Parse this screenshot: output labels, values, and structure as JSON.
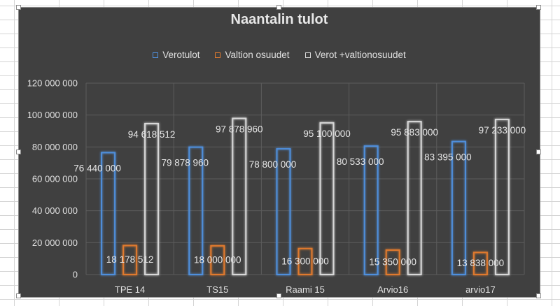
{
  "chart_data": {
    "type": "bar",
    "title": "Naantalin tulot",
    "categories": [
      "TPE 14",
      "TS15",
      "Raami 15",
      "Arvio16",
      "arvio17"
    ],
    "series": [
      {
        "name": "Verotulot",
        "color": "#4f8fdc",
        "values": [
          76440000,
          79878960,
          78800000,
          80533000,
          83395000
        ],
        "labels": [
          "76 440 000",
          "79 878 960",
          "78 800 000",
          "80 533 000",
          "83 395 000"
        ]
      },
      {
        "name": "Valtion osuudet",
        "color": "#e07a2e",
        "values": [
          18178512,
          18000000,
          16300000,
          15350000,
          13838000
        ],
        "labels": [
          "18 178 512",
          "18 000 000",
          "16 300 000",
          "15 350 000",
          "13 838 000"
        ]
      },
      {
        "name": "Verot +valtionosuudet",
        "color": "#d8d8d8",
        "values": [
          94618512,
          97878960,
          95100000,
          95883000,
          97233000
        ],
        "labels": [
          "94 618 512",
          "97 878 960",
          "95 100 000",
          "95 883 000",
          "97 233 000"
        ]
      }
    ],
    "ylim": [
      0,
      120000000
    ],
    "yticks": [
      0,
      20000000,
      40000000,
      60000000,
      80000000,
      100000000,
      120000000
    ],
    "ytick_labels": [
      "0",
      "20 000 000",
      "40 000 000",
      "60 000 000",
      "80 000 000",
      "100 000 000",
      "120 000 000"
    ],
    "grid": true,
    "legend_position": "top"
  }
}
